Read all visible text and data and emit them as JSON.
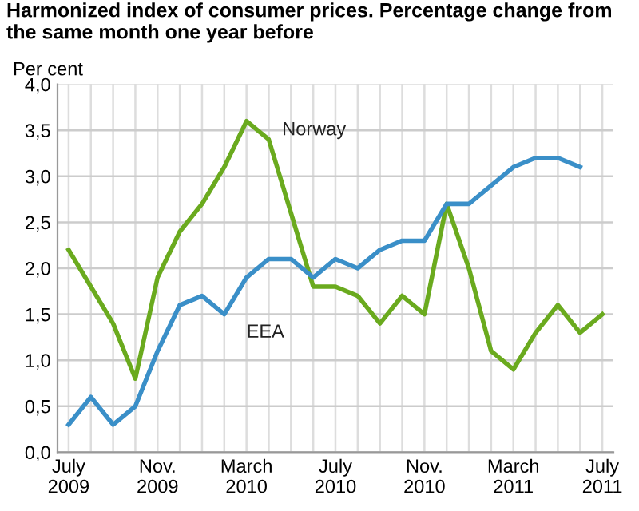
{
  "chart_data": {
    "type": "line",
    "title": "Harmonized index of consumer prices. Percentage change from the same month one year before",
    "ylabel": "Per cent",
    "categories": [
      "July\n2009",
      null,
      null,
      null,
      "Nov.\n2009",
      null,
      null,
      null,
      "March\n2010",
      null,
      null,
      null,
      "July\n2010",
      null,
      null,
      null,
      "Nov.\n2010",
      null,
      null,
      null,
      "March\n2011",
      null,
      null,
      null,
      "July\n2011"
    ],
    "series": [
      {
        "name": "Norway",
        "color": "#6aaa1e",
        "values": [
          2.2,
          1.8,
          1.4,
          0.8,
          1.9,
          2.4,
          2.7,
          3.1,
          3.6,
          3.4,
          2.6,
          1.8,
          1.8,
          1.7,
          1.4,
          1.7,
          1.5,
          2.7,
          2.0,
          1.1,
          0.9,
          1.3,
          1.6,
          1.3,
          1.5
        ]
      },
      {
        "name": "EEA",
        "color": "#3a8fc8",
        "values": [
          0.3,
          0.6,
          0.3,
          0.5,
          1.1,
          1.6,
          1.7,
          1.5,
          1.9,
          2.1,
          2.1,
          1.9,
          2.1,
          2.0,
          2.2,
          2.3,
          2.3,
          2.7,
          2.7,
          2.9,
          3.1,
          3.2,
          3.2,
          3.1,
          null
        ]
      }
    ],
    "ylim": [
      0,
      4
    ],
    "yticks": [
      {
        "value": 0,
        "label": "0,0"
      },
      {
        "value": 0.5,
        "label": "0,5"
      },
      {
        "value": 1,
        "label": "1,0"
      },
      {
        "value": 1.5,
        "label": "1,5"
      },
      {
        "value": 2,
        "label": "2,0"
      },
      {
        "value": 2.5,
        "label": "2,5"
      },
      {
        "value": 3,
        "label": "3,0"
      },
      {
        "value": 3.5,
        "label": "3,5"
      },
      {
        "value": 4,
        "label": "4,0"
      }
    ],
    "grid": true,
    "legend": false,
    "marker": "none",
    "line_style": "solid"
  }
}
